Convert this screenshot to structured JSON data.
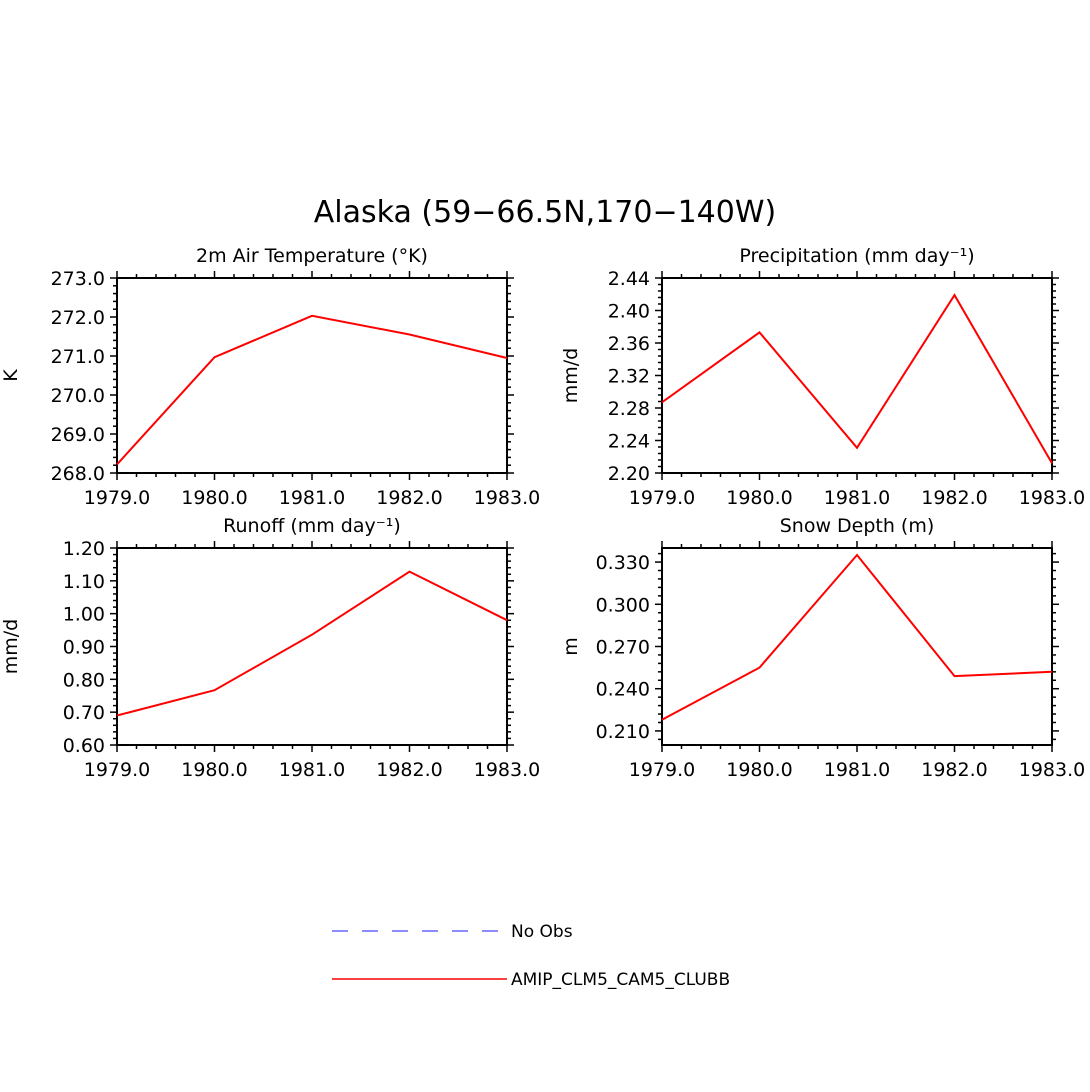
{
  "title": "Alaska (59−66.5N,170−140W)",
  "colors": {
    "model": "#ff0000",
    "obs": "#6666ff",
    "axis": "#000000"
  },
  "legend": [
    {
      "label": "No Obs",
      "style": "dashed",
      "color": "#6666ff"
    },
    {
      "label": "AMIP_CLM5_CAM5_CLUBB",
      "style": "solid",
      "color": "#ff0000"
    }
  ],
  "chart_data": [
    {
      "type": "line",
      "title": "2m Air Temperature (°K)",
      "ylabel": "K",
      "x": [
        1979.0,
        1980.0,
        1981.0,
        1982.0,
        1983.0
      ],
      "xlim": [
        1979.0,
        1983.0
      ],
      "xticks": [
        "1979.0",
        "1980.0",
        "1981.0",
        "1982.0",
        "1983.0"
      ],
      "ylim": [
        268.0,
        273.0
      ],
      "yticks": [
        "268.0",
        "269.0",
        "270.0",
        "271.0",
        "272.0",
        "273.0"
      ],
      "ytick_values": [
        268.0,
        269.0,
        270.0,
        271.0,
        272.0,
        273.0
      ],
      "series": [
        {
          "name": "AMIP_CLM5_CAM5_CLUBB",
          "values": [
            268.22,
            270.97,
            272.03,
            271.55,
            270.95
          ]
        }
      ]
    },
    {
      "type": "line",
      "title": "Precipitation (mm day⁻¹)",
      "ylabel": "mm/d",
      "x": [
        1979.0,
        1980.0,
        1981.0,
        1982.0,
        1983.0
      ],
      "xlim": [
        1979.0,
        1983.0
      ],
      "xticks": [
        "1979.0",
        "1980.0",
        "1981.0",
        "1982.0",
        "1983.0"
      ],
      "ylim": [
        2.2,
        2.44
      ],
      "yticks": [
        "2.20",
        "2.24",
        "2.28",
        "2.32",
        "2.36",
        "2.40",
        "2.44"
      ],
      "ytick_values": [
        2.2,
        2.24,
        2.28,
        2.32,
        2.36,
        2.4,
        2.44
      ],
      "series": [
        {
          "name": "AMIP_CLM5_CAM5_CLUBB",
          "values": [
            2.287,
            2.373,
            2.231,
            2.419,
            2.212
          ]
        }
      ]
    },
    {
      "type": "line",
      "title": "Runoff (mm day⁻¹)",
      "ylabel": "mm/d",
      "x": [
        1979.0,
        1980.0,
        1981.0,
        1982.0,
        1983.0
      ],
      "xlim": [
        1979.0,
        1983.0
      ],
      "xticks": [
        "1979.0",
        "1980.0",
        "1981.0",
        "1982.0",
        "1983.0"
      ],
      "ylim": [
        0.6,
        1.2
      ],
      "yticks": [
        "0.60",
        "0.70",
        "0.80",
        "0.90",
        "1.00",
        "1.10",
        "1.20"
      ],
      "ytick_values": [
        0.6,
        0.7,
        0.8,
        0.9,
        1.0,
        1.1,
        1.2
      ],
      "series": [
        {
          "name": "AMIP_CLM5_CAM5_CLUBB",
          "values": [
            0.69,
            0.767,
            0.936,
            1.128,
            0.98
          ]
        }
      ]
    },
    {
      "type": "line",
      "title": "Snow Depth (m)",
      "ylabel": "m",
      "x": [
        1979.0,
        1980.0,
        1981.0,
        1982.0,
        1983.0
      ],
      "xlim": [
        1979.0,
        1983.0
      ],
      "xticks": [
        "1979.0",
        "1980.0",
        "1981.0",
        "1982.0",
        "1983.0"
      ],
      "ylim": [
        0.2,
        0.34
      ],
      "yticks": [
        "0.210",
        "0.240",
        "0.270",
        "0.300",
        "0.330"
      ],
      "ytick_values": [
        0.21,
        0.24,
        0.27,
        0.3,
        0.33
      ],
      "series": [
        {
          "name": "AMIP_CLM5_CAM5_CLUBB",
          "values": [
            0.218,
            0.255,
            0.335,
            0.249,
            0.252
          ]
        }
      ]
    }
  ]
}
